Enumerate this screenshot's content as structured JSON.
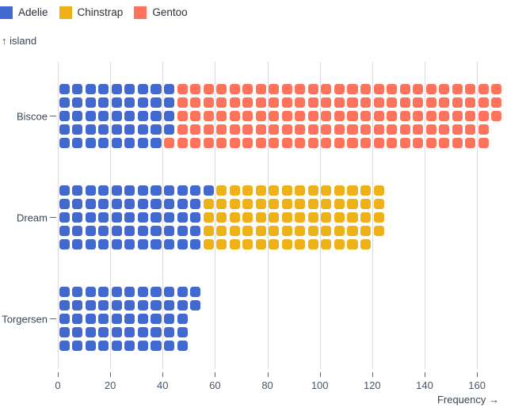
{
  "legend": {
    "items": [
      {
        "label": "Adelie",
        "color": "#4269d0"
      },
      {
        "label": "Chinstrap",
        "color": "#efb118"
      },
      {
        "label": "Gentoo",
        "color": "#ff725c"
      }
    ]
  },
  "chart_data": {
    "type": "bar",
    "variant": "waffle-unit-chart",
    "orientation": "horizontal",
    "title": "",
    "xlabel": "Frequency →",
    "ylabel": "↑ island",
    "categories": [
      "Biscoe",
      "Dream",
      "Torgersen"
    ],
    "series": [
      {
        "name": "Adelie",
        "color": "#4269d0",
        "values": [
          44,
          56,
          52
        ]
      },
      {
        "name": "Chinstrap",
        "color": "#efb118",
        "values": [
          0,
          68,
          0
        ]
      },
      {
        "name": "Gentoo",
        "color": "#ff725c",
        "values": [
          124,
          0,
          0
        ]
      }
    ],
    "totals": [
      168,
      124,
      52
    ],
    "x_ticks": [
      0,
      20,
      40,
      60,
      80,
      100,
      120,
      140,
      160
    ],
    "xlim": [
      0,
      171
    ],
    "rows_per_bar": 5,
    "units_per_cell": 1,
    "grid": true,
    "legend_position": "top-left"
  },
  "colors": {
    "background": "#ffffff",
    "grid": "#d9dde1",
    "tick": "#5a6675",
    "axis_text": "#4a5765",
    "text": "#3a4754"
  }
}
